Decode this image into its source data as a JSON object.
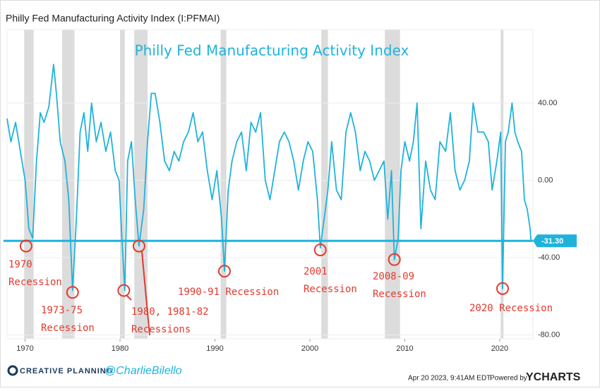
{
  "chart_data": {
    "type": "line",
    "title": "Philly Fed Manufacturing Activity Index (I:PFMAI)",
    "subtitle": "Philly Fed Manufacturing Activity Index",
    "x": [
      1968.1,
      1968.5,
      1969.0,
      1969.5,
      1970.0,
      1970.4,
      1970.8,
      1971.2,
      1971.6,
      1972.0,
      1972.5,
      1973.0,
      1973.3,
      1973.7,
      1974.2,
      1974.6,
      1975.0,
      1975.4,
      1975.8,
      1976.2,
      1976.6,
      1977.0,
      1977.5,
      1978.0,
      1978.5,
      1979.0,
      1979.5,
      1979.9,
      1980.2,
      1980.5,
      1980.8,
      1981.2,
      1981.6,
      1982.0,
      1982.5,
      1982.9,
      1983.3,
      1983.7,
      1984.2,
      1984.7,
      1985.2,
      1985.7,
      1986.2,
      1986.7,
      1987.2,
      1987.7,
      1988.2,
      1988.7,
      1989.2,
      1989.7,
      1990.2,
      1990.7,
      1991.0,
      1991.4,
      1991.8,
      1992.3,
      1992.8,
      1993.3,
      1993.8,
      1994.3,
      1994.8,
      1995.3,
      1995.8,
      1996.3,
      1996.8,
      1997.3,
      1997.8,
      1998.3,
      1998.8,
      1999.3,
      1999.8,
      2000.3,
      2000.8,
      2001.1,
      2001.5,
      2001.9,
      2002.3,
      2002.8,
      2003.3,
      2003.8,
      2004.3,
      2004.8,
      2005.3,
      2005.8,
      2006.3,
      2006.8,
      2007.3,
      2007.8,
      2008.2,
      2008.6,
      2008.9,
      2009.3,
      2009.6,
      2010.0,
      2010.5,
      2010.9,
      2011.3,
      2011.7,
      2012.2,
      2012.7,
      2013.2,
      2013.7,
      2014.3,
      2014.8,
      2015.3,
      2015.8,
      2016.3,
      2016.8,
      2017.2,
      2017.7,
      2018.3,
      2018.8,
      2019.2,
      2019.7,
      2020.1,
      2020.3,
      2020.6,
      2020.9,
      2021.3,
      2021.6,
      2021.9,
      2022.3,
      2022.6,
      2022.9,
      2023.2,
      2023.3
    ],
    "series": [
      {
        "name": "Philly Fed Manufacturing Activity Index",
        "color": "#1fb3dc",
        "values": [
          32,
          20,
          30,
          15,
          0,
          -25,
          -30,
          10,
          35,
          30,
          38,
          60,
          45,
          20,
          10,
          -10,
          -57,
          -20,
          25,
          35,
          15,
          40,
          20,
          30,
          15,
          25,
          5,
          0,
          -30,
          -57,
          10,
          20,
          -10,
          -34,
          -15,
          20,
          45,
          45,
          30,
          10,
          5,
          15,
          10,
          20,
          25,
          35,
          20,
          25,
          5,
          -10,
          5,
          -20,
          -47,
          -5,
          10,
          20,
          25,
          5,
          30,
          25,
          35,
          0,
          -10,
          5,
          20,
          25,
          20,
          10,
          -5,
          10,
          20,
          15,
          -10,
          -35,
          -20,
          -5,
          20,
          -5,
          -10,
          25,
          35,
          25,
          5,
          15,
          10,
          0,
          5,
          10,
          -20,
          5,
          -41,
          -30,
          5,
          20,
          10,
          20,
          40,
          -25,
          10,
          -5,
          -10,
          20,
          15,
          35,
          5,
          -5,
          0,
          10,
          40,
          25,
          25,
          20,
          -5,
          10,
          25,
          -56,
          20,
          25,
          40,
          25,
          20,
          15,
          -10,
          -15,
          -25,
          -31.3
        ]
      }
    ],
    "last_value": -31.3,
    "last_value_label": "-31.30",
    "recessions": [
      [
        1969.9,
        1970.9
      ],
      [
        1973.9,
        1975.2
      ],
      [
        1980.0,
        1980.5
      ],
      [
        1981.5,
        1982.9
      ],
      [
        1990.6,
        1991.2
      ],
      [
        2001.2,
        2001.9
      ],
      [
        2007.9,
        2009.5
      ],
      [
        2020.1,
        2020.4
      ]
    ],
    "annotations": [
      {
        "lines": [
          "1970",
          "Recession"
        ],
        "points": [
          [
            1970.1,
            -34
          ]
        ]
      },
      {
        "lines": [
          "1973-75",
          "Recession"
        ],
        "points": [
          [
            1975.0,
            -58
          ]
        ]
      },
      {
        "lines": [
          "1980, 1981-82",
          "Recessions"
        ],
        "points": [
          [
            1980.4,
            -57
          ],
          [
            1982.0,
            -34
          ]
        ]
      },
      {
        "lines": [
          "1990-91 Recession"
        ],
        "points": [
          [
            1991.0,
            -47
          ]
        ]
      },
      {
        "lines": [
          "2001",
          "Recession"
        ],
        "points": [
          [
            2001.1,
            -36
          ]
        ]
      },
      {
        "lines": [
          "2008-09",
          "Recession"
        ],
        "points": [
          [
            2008.9,
            -41
          ]
        ]
      },
      {
        "lines": [
          "2020 Recession"
        ],
        "points": [
          [
            2020.3,
            -56
          ]
        ]
      }
    ],
    "xlim": [
      1968.1,
      2023.5
    ],
    "ylim": [
      -82,
      78
    ],
    "xticks": [
      1970,
      1980,
      1990,
      2000,
      2010,
      2020
    ],
    "yticks": [
      {
        "value": -80,
        "label": "-80.00"
      },
      {
        "value": -40,
        "label": "-40.00"
      },
      {
        "value": 0,
        "label": "0.00"
      },
      {
        "value": 40,
        "label": "40.00"
      }
    ],
    "grid": true,
    "footer": {
      "brand": "CREATIVE PLANNING",
      "handle": "@CharlieBilello",
      "date": "Apr 20 2023, 9:41AM EDT.",
      "powered": "Powered by",
      "provider": "YCHARTS"
    }
  }
}
